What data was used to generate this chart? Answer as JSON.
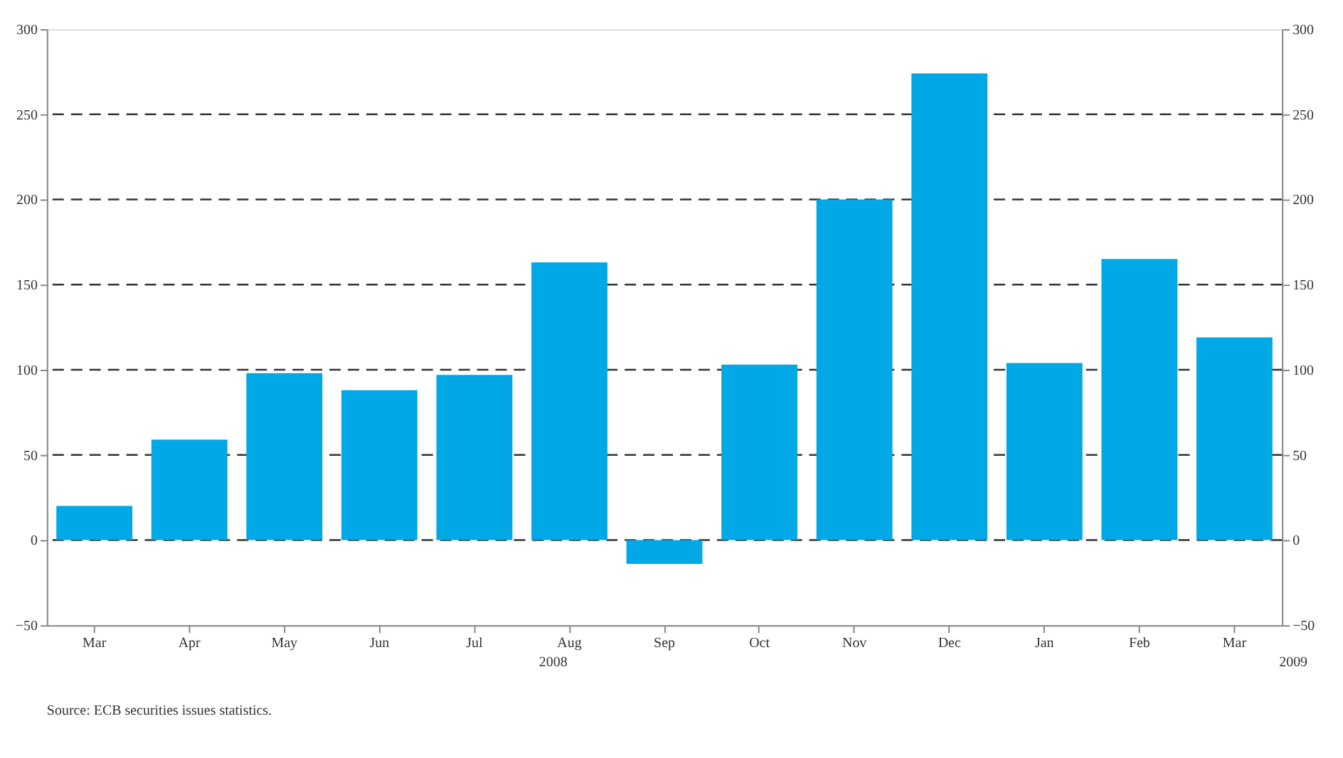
{
  "chart_data": {
    "type": "bar",
    "categories": [
      "Mar",
      "Apr",
      "May",
      "Jun",
      "Jul",
      "Aug",
      "Sep",
      "Oct",
      "Nov",
      "Dec",
      "Jan",
      "Feb",
      "Mar"
    ],
    "series": [
      {
        "color": "#00a8e6",
        "values": [
          20,
          59,
          98,
          88,
          97,
          163,
          -14,
          103,
          200,
          274,
          104,
          165,
          119
        ]
      }
    ],
    "ylim": [
      -50,
      300
    ],
    "yticks": [
      -50,
      0,
      50,
      100,
      150,
      200,
      250,
      300
    ],
    "y2lim": [
      -50,
      300
    ],
    "y2ticks": [
      -50,
      0,
      50,
      100,
      150,
      200,
      250,
      300
    ],
    "grid": "y",
    "line_style": "dashed",
    "annotations": [
      "2008",
      "2009",
      "Source: ECB securities issues statistics."
    ]
  }
}
